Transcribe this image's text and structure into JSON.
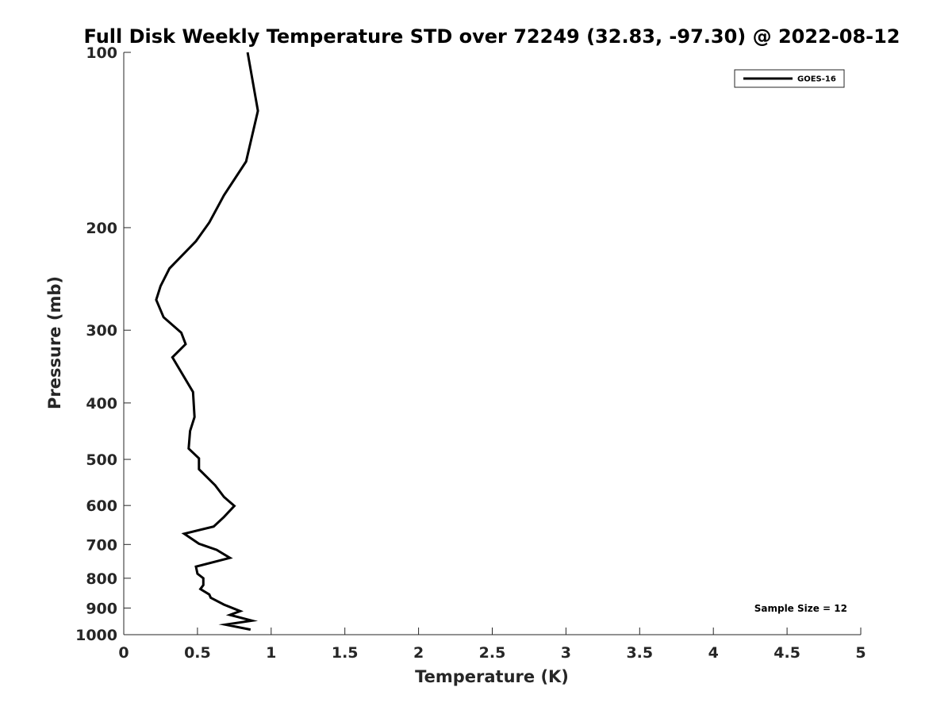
{
  "chart_data": {
    "type": "line",
    "title": "Full Disk Weekly Temperature STD over 72249 (32.83, -97.30) @ 2022-08-12",
    "xlabel": "Temperature (K)",
    "ylabel": "Pressure (mb)",
    "xlim": [
      0,
      5
    ],
    "ylim": [
      1000,
      100
    ],
    "yscale": "log",
    "y_reversed": true,
    "grid": false,
    "legend_position": "top-right",
    "x_ticks": [
      "0",
      "0.5",
      "1",
      "1.5",
      "2",
      "2.5",
      "3",
      "3.5",
      "4",
      "4.5",
      "5"
    ],
    "y_ticks": [
      "100",
      "200",
      "300",
      "400",
      "500",
      "600",
      "700",
      "800",
      "900",
      "1000"
    ],
    "series": [
      {
        "name": "GOES-16",
        "color": "#000000",
        "points": [
          [
            0.84,
            100
          ],
          [
            0.91,
            126
          ],
          [
            0.83,
            154
          ],
          [
            0.68,
            176
          ],
          [
            0.58,
            196
          ],
          [
            0.49,
            211
          ],
          [
            0.31,
            235
          ],
          [
            0.25,
            252
          ],
          [
            0.22,
            266
          ],
          [
            0.27,
            285
          ],
          [
            0.39,
            303
          ],
          [
            0.42,
            317
          ],
          [
            0.33,
            334
          ],
          [
            0.47,
            383
          ],
          [
            0.48,
            423
          ],
          [
            0.45,
            447
          ],
          [
            0.44,
            479
          ],
          [
            0.51,
            498
          ],
          [
            0.51,
            520
          ],
          [
            0.62,
            554
          ],
          [
            0.68,
            580
          ],
          [
            0.75,
            601
          ],
          [
            0.68,
            628
          ],
          [
            0.61,
            652
          ],
          [
            0.41,
            671
          ],
          [
            0.51,
            698
          ],
          [
            0.63,
            715
          ],
          [
            0.72,
            738
          ],
          [
            0.49,
            764
          ],
          [
            0.5,
            786
          ],
          [
            0.54,
            800
          ],
          [
            0.54,
            822
          ],
          [
            0.52,
            835
          ],
          [
            0.58,
            853
          ],
          [
            0.59,
            864
          ],
          [
            0.68,
            888
          ],
          [
            0.79,
            911
          ],
          [
            0.72,
            925
          ],
          [
            0.87,
            946
          ],
          [
            0.69,
            961
          ],
          [
            0.86,
            980
          ]
        ]
      }
    ],
    "annotations": [
      "Sample Size = 12"
    ]
  }
}
